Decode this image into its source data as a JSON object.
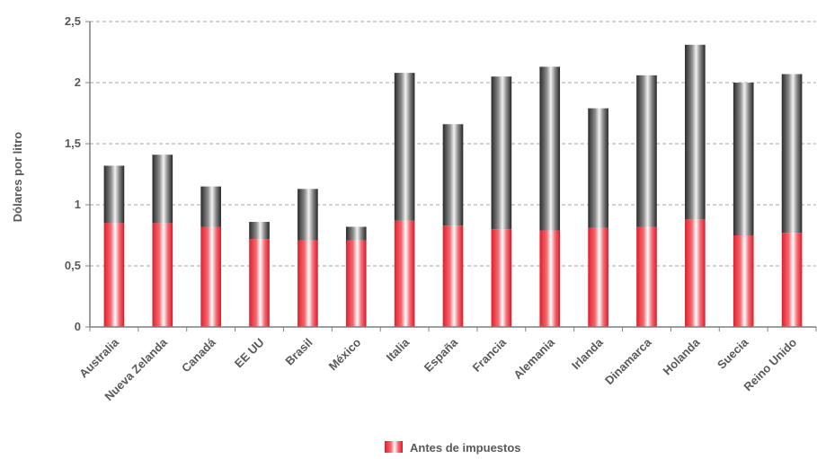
{
  "chart_data": {
    "type": "bar",
    "stacked": true,
    "categories": [
      "Australia",
      "Nueva Zelanda",
      "Canadá",
      "EE UU",
      "Brasil",
      "México",
      "Italia",
      "España",
      "Francia",
      "Alemania",
      "Irlanda",
      "Dinamarca",
      "Holanda",
      "Suecia",
      "Reino Unido"
    ],
    "series": [
      {
        "name": "Antes de impuestos",
        "color": "#e8343f",
        "values": [
          0.85,
          0.85,
          0.82,
          0.72,
          0.71,
          0.71,
          0.87,
          0.83,
          0.8,
          0.79,
          0.81,
          0.82,
          0.88,
          0.75,
          0.77
        ]
      },
      {
        "color": "#3c3c3c",
        "values": [
          0.47,
          0.56,
          0.33,
          0.14,
          0.42,
          0.11,
          1.21,
          0.83,
          1.25,
          1.34,
          0.98,
          1.24,
          1.43,
          1.25,
          1.3
        ]
      }
    ],
    "ylabel": "Dólares por litro",
    "ylim": [
      0,
      2.5
    ],
    "yticks": [
      "0",
      "0,5",
      "1",
      "1,5",
      "2",
      "2,5"
    ],
    "ytick_values": [
      0,
      0.5,
      1,
      1.5,
      2,
      2.5
    ],
    "grid": true,
    "legend_position": "bottom"
  }
}
